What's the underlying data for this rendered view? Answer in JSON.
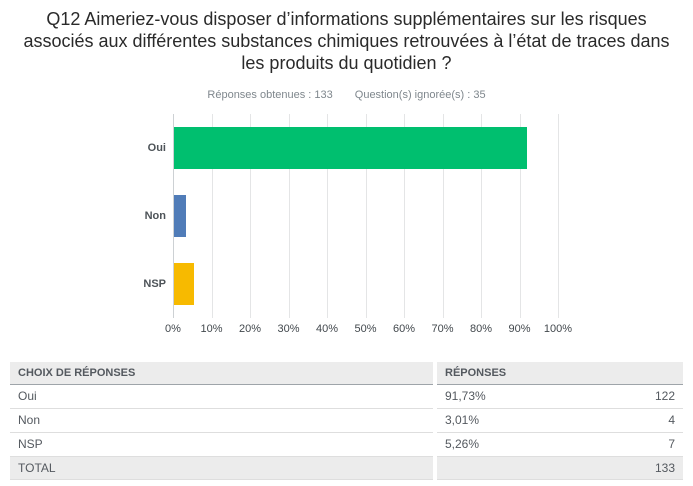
{
  "question": {
    "title": "Q12 Aimeriez-vous disposer d’informations supplémentaires sur les risques associés aux différentes substances chimiques retrouvées à l’état de traces dans les produits du quotidien ?",
    "answered_label": "Réponses obtenues : 133",
    "skipped_label": "Question(s) ignorée(s) : 35"
  },
  "chart_data": {
    "type": "bar",
    "orientation": "horizontal",
    "title": "",
    "categories": [
      "Oui",
      "Non",
      "NSP"
    ],
    "values": [
      91.73,
      3.01,
      5.26
    ],
    "bar_colors": [
      "#00bf6f",
      "#507cb8",
      "#f7ba00"
    ],
    "xlabel": "",
    "ylabel": "",
    "xlim": [
      0,
      100
    ],
    "x_tick_labels": [
      "0%",
      "10%",
      "20%",
      "30%",
      "40%",
      "50%",
      "60%",
      "70%",
      "80%",
      "90%",
      "100%"
    ],
    "grid": true,
    "gridline_color": "#e4e5e6",
    "legend": false
  },
  "table": {
    "headers": [
      "CHOIX DE RÉPONSES",
      "RÉPONSES"
    ],
    "rows": [
      {
        "choice": "Oui",
        "percent": "91,73%",
        "count": "122"
      },
      {
        "choice": "Non",
        "percent": "3,01%",
        "count": "4"
      },
      {
        "choice": "NSP",
        "percent": "5,26%",
        "count": "7"
      }
    ],
    "total_label": "TOTAL",
    "total_count": "133"
  }
}
